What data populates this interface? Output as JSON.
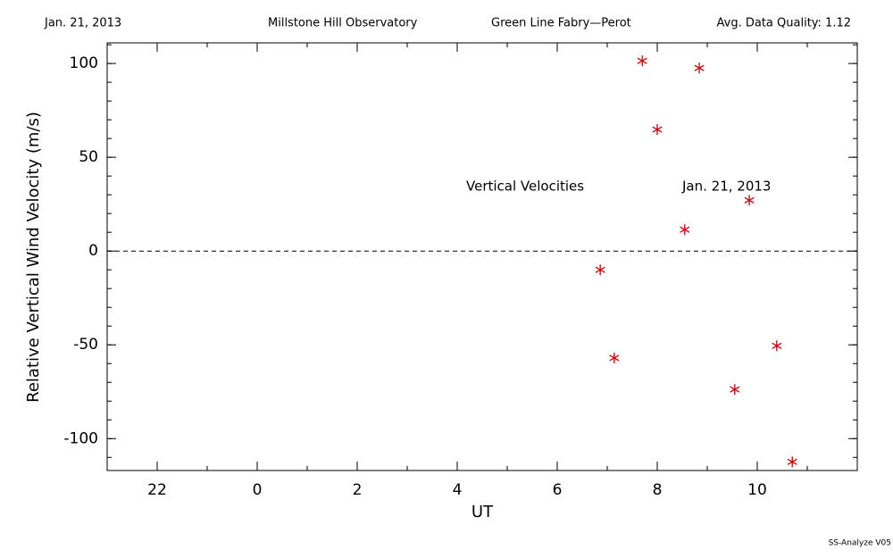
{
  "chart_data": {
    "type": "scatter",
    "header": [
      "Jan. 21, 2013",
      "Millstone Hill Observatory",
      "Green Line Fabry—Perot",
      "Avg. Data Quality: 1.12"
    ],
    "annotations": [
      "Vertical Velocities",
      "Jan. 21, 2013"
    ],
    "footer": "SS-Analyze V05",
    "xlabel": "UT",
    "ylabel": "Relative Vertical Wind Velocity (m/s)",
    "xlim": [
      -3,
      12
    ],
    "ylim": [
      -117,
      111
    ],
    "xticks": [
      {
        "value": -2,
        "label": "22"
      },
      0,
      2,
      4,
      6,
      8,
      10
    ],
    "yticks": [
      -100,
      -50,
      0,
      50,
      100
    ],
    "xminor_step": 1,
    "yminor_step": 10,
    "reference_line": 0,
    "series": [
      {
        "name": "Vertical Velocities",
        "color": "#cc0000",
        "x": [
          6.86,
          7.14,
          7.7,
          8.0,
          8.55,
          8.84,
          9.55,
          9.84,
          10.39,
          10.7
        ],
        "values": [
          -10,
          -57,
          101.4,
          64.8,
          11.4,
          97.6,
          -73.8,
          27.1,
          -50.5,
          -112.4
        ]
      }
    ]
  }
}
